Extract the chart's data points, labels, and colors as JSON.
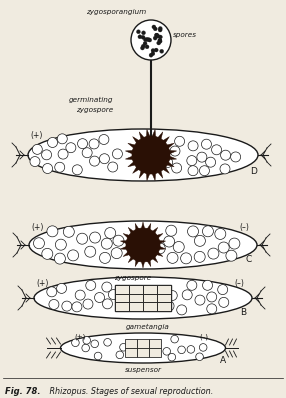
{
  "bg_color": "#f0ebe0",
  "line_color": "#1a1a1a",
  "dark_brown": "#2a1005",
  "fig_width": 2.86,
  "fig_height": 3.98,
  "dpi": 100,
  "caption_bold": "Fig. 78.",
  "caption_rest": "   Rhizopus. Stages of sexual reproduction.",
  "label_zygosporangium": "zygosporangium",
  "label_spores": "spores",
  "label_germinating": "germinating",
  "label_zygospore_d": "zygospore",
  "label_zygospore_c": "zygospore",
  "label_gametangia": "gametangia",
  "label_suspensor": "suspensor",
  "label_D": "D",
  "label_C": "C",
  "label_B": "B",
  "label_A": "A",
  "label_plus": "(+)",
  "label_minus": "(–)"
}
